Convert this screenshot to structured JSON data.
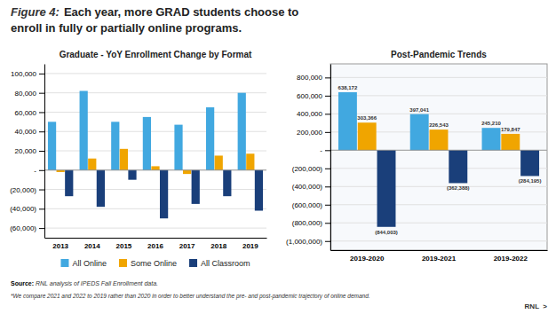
{
  "annotations": [
    "Figure 4:",
    "Each year, more GRAD students choose to",
    "enroll in fully or partially online programs.",
    "Source:",
    " RNL analysis of IPEDS Fall Enrollment data.",
    "*We compare 2021 and 2022 to 2019 rather than 2020 in order to better understand the pre- and post-pandemic trajectory of online demand.",
    "RNL  >"
  ],
  "chart_data": [
    {
      "type": "bar",
      "title": "Graduate - YoY Enrollment Change by Format",
      "categories": [
        "2013",
        "2014",
        "2015",
        "2016",
        "2017",
        "2018",
        "2019"
      ],
      "series": [
        {
          "name": "All Online",
          "color": "#41A8E0",
          "values": [
            50000,
            82000,
            50000,
            55000,
            47000,
            65000,
            80000
          ]
        },
        {
          "name": "Some Online",
          "color": "#F0A500",
          "values": [
            -2000,
            12000,
            22000,
            4000,
            -4000,
            15000,
            17000
          ]
        },
        {
          "name": "All Classroom",
          "color": "#1A3F7A",
          "values": [
            -27000,
            -38000,
            -10000,
            -50000,
            -35000,
            -27000,
            -42000
          ]
        }
      ],
      "ylim": [
        -70000,
        110000
      ],
      "yticks": [
        {
          "value": -60000,
          "label": "(60,000)"
        },
        {
          "value": -40000,
          "label": "(40,000)"
        },
        {
          "value": -20000,
          "label": "(20,000)"
        },
        {
          "value": 0,
          "label": "-"
        },
        {
          "value": 20000,
          "label": "20,000"
        },
        {
          "value": 40000,
          "label": "40,000"
        },
        {
          "value": 60000,
          "label": "60,000"
        },
        {
          "value": 80000,
          "label": "80,000"
        },
        {
          "value": 100000,
          "label": "100,000"
        }
      ],
      "grid": true
    },
    {
      "type": "bar",
      "title": "Post-Pandemic Trends",
      "categories": [
        "2019-2020",
        "2019-2021",
        "2019-2022"
      ],
      "series": [
        {
          "color": "#41A8E0",
          "values": [
            638172,
            397041,
            245210
          ],
          "value_labels": [
            "638,172",
            "397,041",
            "245,210"
          ]
        },
        {
          "color": "#F0A500",
          "values": [
            303366,
            226543,
            179847
          ],
          "value_labels": [
            "303,366",
            "226,543",
            "179,847"
          ]
        },
        {
          "color": "#1A3F7A",
          "values": [
            -844003,
            -362388,
            -284195
          ],
          "value_labels": [
            "(844,003)",
            "(362,388)",
            "(284,195)"
          ]
        }
      ],
      "ylim": [
        -1100000,
        950000
      ],
      "yticks": [
        {
          "value": -1000000,
          "label": "(1,000,000)"
        },
        {
          "value": -800000,
          "label": "(800,000)"
        },
        {
          "value": -600000,
          "label": "(600,000)"
        },
        {
          "value": -400000,
          "label": "(400,000)"
        },
        {
          "value": -200000,
          "label": "(200,000)"
        },
        {
          "value": 0,
          "label": "-"
        },
        {
          "value": 200000,
          "label": "200,000"
        },
        {
          "value": 400000,
          "label": "400,000"
        },
        {
          "value": 600000,
          "label": "600,000"
        },
        {
          "value": 800000,
          "label": "800,000"
        }
      ],
      "grid": true,
      "data_labels": true
    }
  ]
}
